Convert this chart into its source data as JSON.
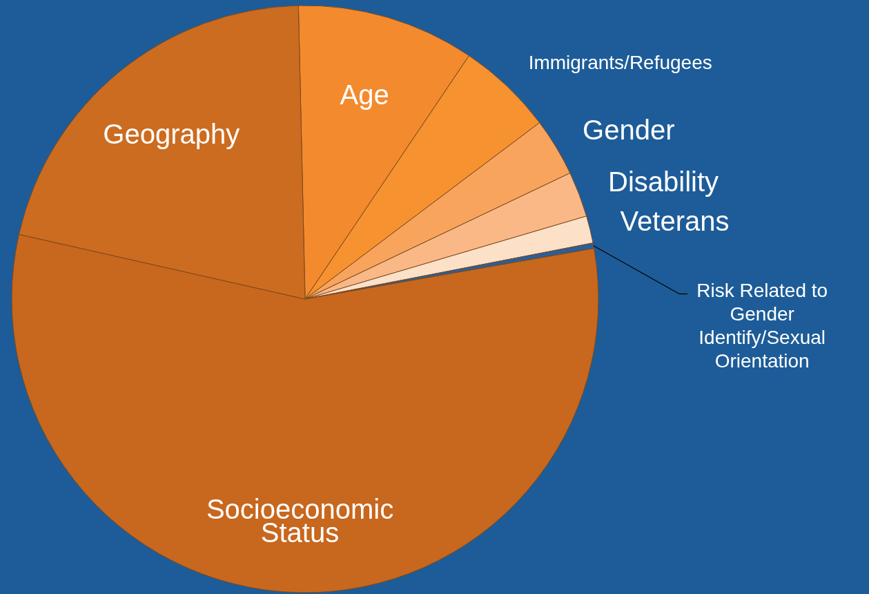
{
  "chart_data": {
    "type": "pie",
    "categories": [
      "Age",
      "Immigrants/Refugees",
      "Gender",
      "Disability",
      "Veterans",
      "Risk Related to Gender Identify/Sexual Orientation",
      "Socioeconomic Status",
      "Geography"
    ],
    "values": [
      9.8,
      5.3,
      3.2,
      2.5,
      1.5,
      0.3,
      56.3,
      21.1
    ],
    "colors": [
      "#f38a2e",
      "#f6922f",
      "#f9a45c",
      "#fbb887",
      "#fde0c8",
      "#2d5e96",
      "#c8671e",
      "#cc6c20"
    ]
  }
}
